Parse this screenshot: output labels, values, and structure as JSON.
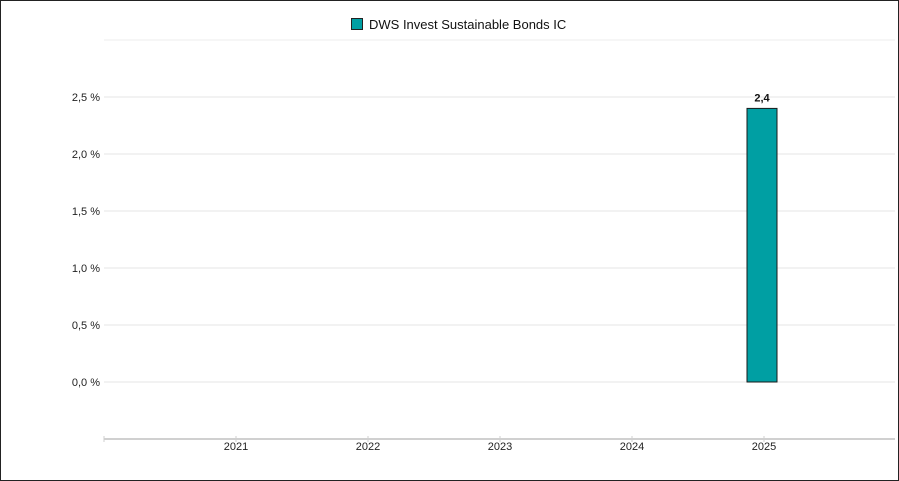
{
  "chart_data": {
    "type": "bar",
    "categories": [
      "2021",
      "2022",
      "2023",
      "2024",
      "2025"
    ],
    "series": [
      {
        "name": "DWS Invest Sustainable Bonds IC",
        "values": [
          null,
          null,
          null,
          null,
          2.4
        ]
      }
    ],
    "data_labels": [
      "",
      "",
      "",
      "",
      "2,4"
    ],
    "y_ticks": [
      0.0,
      0.5,
      1.0,
      1.5,
      2.0,
      2.5
    ],
    "y_tick_labels": [
      "0,0 %",
      "0,5 %",
      "1,0 %",
      "1,5 %",
      "2,0 %",
      "2,5 %"
    ],
    "ylim": [
      -0.5,
      3.0
    ],
    "legend": "top-center",
    "grid": true,
    "bar_color": "#009fa3",
    "title": "",
    "xlabel": "",
    "ylabel": ""
  }
}
